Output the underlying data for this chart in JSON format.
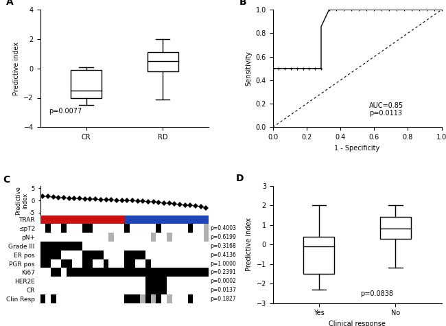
{
  "panel_A": {
    "CR": {
      "whisker_low": -2.5,
      "q1": -2.0,
      "median": -1.5,
      "q3": -0.1,
      "whisker_high": 0.1
    },
    "RD": {
      "whisker_low": -2.1,
      "q1": -0.2,
      "median": 0.5,
      "q3": 1.1,
      "whisker_high": 2.0
    },
    "ylabel": "Predictive index",
    "categories": [
      "CR",
      "RD"
    ],
    "ylim": [
      -4,
      4
    ],
    "yticks": [
      -4,
      -2,
      0,
      2,
      4
    ],
    "pvalue": "p=0.0077"
  },
  "panel_B": {
    "roc_fpr": [
      0.0,
      0.0,
      0.286,
      0.286,
      0.333,
      1.0
    ],
    "roc_tpr": [
      0.0,
      0.5,
      0.5,
      0.857,
      1.0,
      1.0
    ],
    "auc_text": "AUC=0.85\np=0.0113",
    "xlabel": "1 - Specificity",
    "ylabel": "Sensitivity",
    "xlim": [
      0.0,
      1.0
    ],
    "ylim": [
      0.0,
      1.0
    ],
    "xticks": [
      0.0,
      0.2,
      0.4,
      0.6,
      0.8,
      1.0
    ],
    "yticks": [
      0.0,
      0.2,
      0.4,
      0.6,
      0.8,
      1.0
    ]
  },
  "panel_C": {
    "n_samples": 32,
    "predictive_index": [
      1.8,
      1.6,
      1.4,
      1.2,
      1.1,
      1.0,
      0.9,
      0.8,
      0.7,
      0.6,
      0.5,
      0.4,
      0.3,
      0.2,
      0.1,
      0.05,
      -0.05,
      -0.1,
      -0.2,
      -0.3,
      -0.4,
      -0.6,
      -0.8,
      -1.0,
      -1.2,
      -1.4,
      -1.6,
      -1.8,
      -2.0,
      -2.2,
      -2.5,
      -3.0
    ],
    "trar": [
      0,
      0,
      0,
      0,
      0,
      0,
      0,
      0,
      0,
      0,
      0,
      0,
      0,
      0,
      0,
      0,
      1,
      1,
      1,
      1,
      1,
      1,
      1,
      1,
      1,
      1,
      1,
      1,
      1,
      1,
      1,
      1
    ],
    "spt2": [
      0,
      1,
      0,
      0,
      1,
      0,
      0,
      0,
      1,
      1,
      0,
      0,
      0,
      0,
      0,
      0,
      1,
      0,
      0,
      0,
      0,
      0,
      1,
      0,
      0,
      0,
      0,
      0,
      1,
      0,
      0,
      2
    ],
    "pnplus": [
      0,
      0,
      0,
      0,
      0,
      0,
      0,
      0,
      0,
      0,
      0,
      0,
      0,
      2,
      0,
      0,
      0,
      0,
      0,
      0,
      0,
      2,
      0,
      0,
      2,
      0,
      0,
      0,
      0,
      0,
      0,
      2
    ],
    "grade3": [
      1,
      1,
      1,
      1,
      1,
      1,
      1,
      1,
      0,
      0,
      0,
      0,
      0,
      0,
      0,
      0,
      0,
      0,
      0,
      0,
      0,
      0,
      0,
      0,
      0,
      0,
      0,
      0,
      0,
      0,
      0,
      0
    ],
    "erpos": [
      1,
      1,
      1,
      1,
      0,
      0,
      0,
      0,
      1,
      1,
      1,
      1,
      0,
      0,
      0,
      0,
      1,
      1,
      1,
      1,
      0,
      0,
      0,
      0,
      0,
      0,
      0,
      0,
      0,
      0,
      0,
      0
    ],
    "pgrpos": [
      1,
      1,
      0,
      0,
      1,
      1,
      0,
      0,
      1,
      1,
      0,
      0,
      1,
      0,
      0,
      0,
      1,
      1,
      0,
      0,
      1,
      0,
      0,
      0,
      0,
      0,
      0,
      0,
      0,
      0,
      0,
      0
    ],
    "ki67": [
      0,
      0,
      1,
      1,
      0,
      1,
      1,
      1,
      1,
      1,
      1,
      1,
      1,
      1,
      1,
      1,
      1,
      1,
      1,
      1,
      1,
      1,
      1,
      1,
      1,
      1,
      1,
      1,
      1,
      1,
      1,
      1
    ],
    "her2e": [
      0,
      0,
      0,
      0,
      0,
      0,
      0,
      0,
      0,
      0,
      0,
      0,
      0,
      0,
      0,
      0,
      0,
      0,
      0,
      0,
      1,
      1,
      1,
      1,
      0,
      0,
      0,
      0,
      0,
      0,
      0,
      0
    ],
    "cr": [
      0,
      0,
      0,
      0,
      0,
      0,
      0,
      0,
      0,
      0,
      0,
      0,
      0,
      0,
      0,
      0,
      0,
      0,
      0,
      0,
      1,
      1,
      1,
      1,
      0,
      0,
      0,
      0,
      0,
      0,
      0,
      0
    ],
    "clinresp": [
      1,
      0,
      1,
      0,
      0,
      0,
      0,
      0,
      0,
      0,
      0,
      0,
      0,
      0,
      0,
      0,
      1,
      1,
      1,
      2,
      1,
      2,
      1,
      0,
      2,
      0,
      0,
      0,
      1,
      0,
      0,
      0
    ],
    "pvalues": [
      "p=0.4003",
      "p=0.6199",
      "p=0.3168",
      "p=0.4136",
      "p=1.0000",
      "p=0.2391",
      "p=0.0002",
      "p=0.0137",
      "p=0.1827"
    ],
    "row_labels": [
      "TRAR",
      "≤pT2",
      "pN+",
      "Grade III",
      "ER pos",
      "PGR pos",
      "Ki67",
      "HER2E",
      "CR",
      "Clin Resp"
    ],
    "ylabel": "Predictive\nindex",
    "yticks": [
      -5,
      0,
      5
    ]
  },
  "panel_D": {
    "Yes": {
      "whisker_low": -2.3,
      "q1": -1.5,
      "median": -0.1,
      "q3": 0.4,
      "whisker_high": 2.0
    },
    "No": {
      "whisker_low": -1.2,
      "q1": 0.3,
      "median": 0.8,
      "q3": 1.4,
      "whisker_high": 2.0
    },
    "ylabel": "Predictive index",
    "xlabel": "Clinical response",
    "categories": [
      "Yes",
      "No"
    ],
    "ylim": [
      -3,
      3
    ],
    "yticks": [
      -3,
      -2,
      -1,
      0,
      1,
      2,
      3
    ],
    "pvalue": "p=0.0838"
  }
}
